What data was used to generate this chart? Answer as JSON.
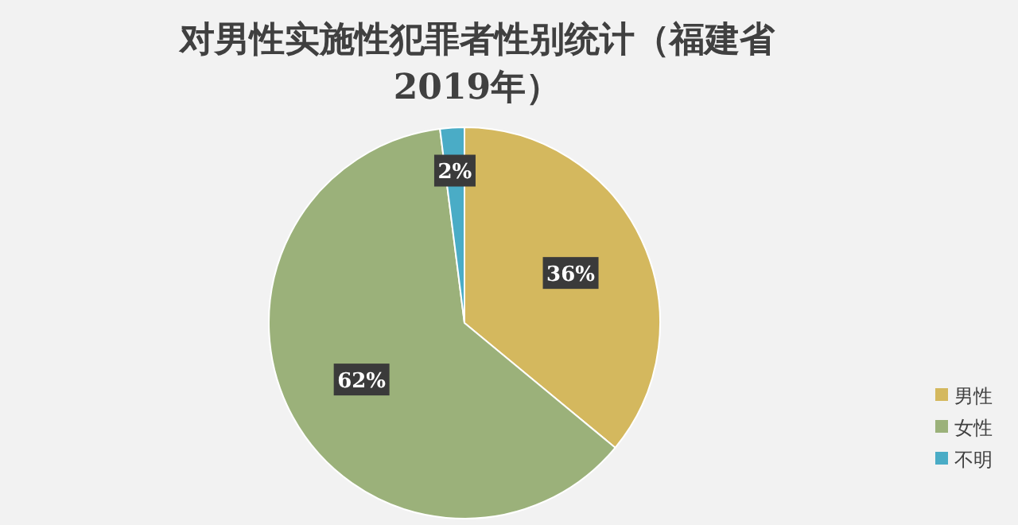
{
  "chart_data": {
    "type": "pie",
    "title": "对男性实施性犯罪者性别统计（福建省 2019年）",
    "categories": [
      "男性",
      "女性",
      "不明"
    ],
    "values": [
      36,
      62,
      2
    ],
    "colors": [
      "#d4b85e",
      "#9bb17a",
      "#4aacc6"
    ],
    "value_labels": [
      "36%",
      "62%",
      "2%"
    ],
    "legend": "right"
  }
}
